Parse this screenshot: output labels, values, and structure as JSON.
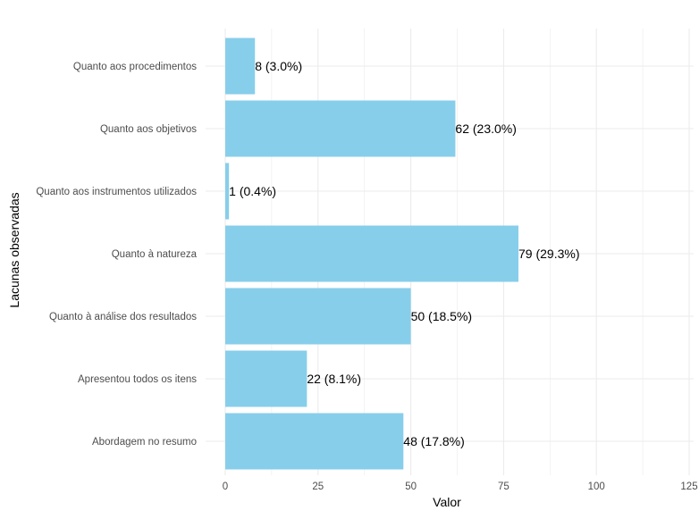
{
  "chart_data": {
    "type": "bar",
    "orientation": "horizontal",
    "title": "",
    "xlabel": "Valor",
    "ylabel": "Lacunas observadas",
    "categories": [
      "Quanto aos procedimentos",
      "Quanto aos objetivos",
      "Quanto aos instrumentos utilizados",
      "Quanto à natureza",
      "Quanto à análise dos resultados",
      "Apresentou todos os itens",
      "Abordagem no resumo"
    ],
    "values": [
      8,
      62,
      1,
      79,
      50,
      22,
      48
    ],
    "data_labels": [
      "8 (3.0%)",
      "62 (23.0%)",
      "1 (0.4%)",
      "79 (29.3%)",
      "50 (18.5%)",
      "22 (8.1%)",
      "48 (17.8%)"
    ],
    "xlim": [
      0,
      125
    ],
    "xticks": [
      0,
      25,
      50,
      75,
      100,
      125
    ],
    "xtick_labels": [
      "0",
      "25",
      "50",
      "75",
      "100",
      "125"
    ],
    "grid": true,
    "bar_color": "#87CEEB"
  }
}
